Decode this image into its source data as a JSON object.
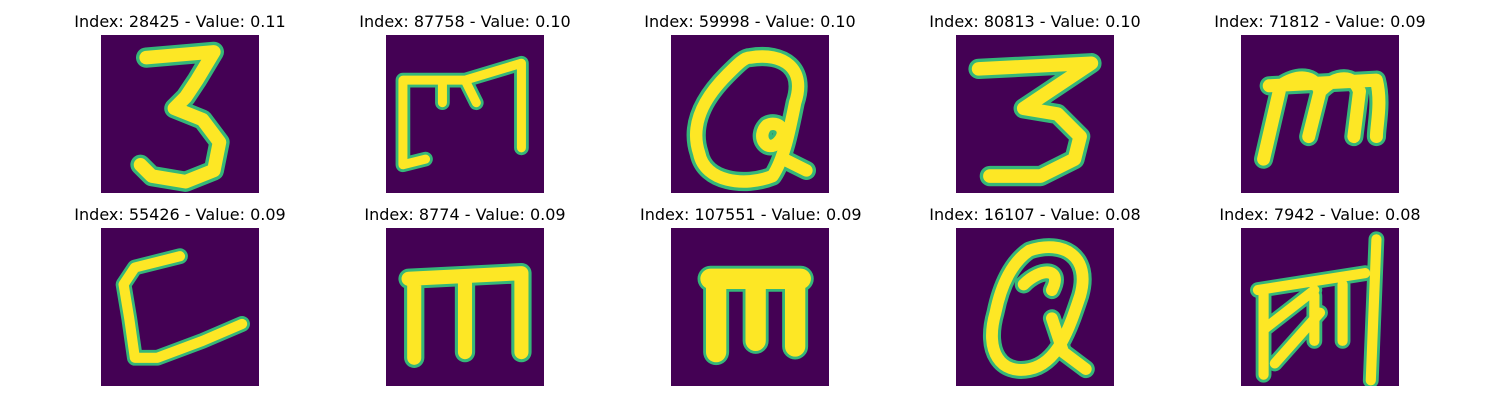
{
  "panels": [
    {
      "title": "Index: 28425 - Value: 0.11",
      "glyph": "three-a",
      "colormap": "viridis"
    },
    {
      "title": "Index: 87758 - Value: 0.10",
      "glyph": "m-box",
      "colormap": "viridis"
    },
    {
      "title": "Index: 59998 - Value: 0.10",
      "glyph": "q-round",
      "colormap": "viridis"
    },
    {
      "title": "Index: 80813 - Value: 0.10",
      "glyph": "three-b",
      "colormap": "viridis"
    },
    {
      "title": "Index: 71812 - Value: 0.09",
      "glyph": "m-slant",
      "colormap": "viridis"
    },
    {
      "title": "Index: 55426 - Value: 0.09",
      "glyph": "l-curve",
      "colormap": "viridis"
    },
    {
      "title": "Index: 8774 - Value: 0.09",
      "glyph": "m-thick",
      "colormap": "viridis"
    },
    {
      "title": "Index: 107551 - Value: 0.09",
      "glyph": "m-bold",
      "colormap": "viridis"
    },
    {
      "title": "Index: 16107 - Value: 0.08",
      "glyph": "q-tall",
      "colormap": "viridis"
    },
    {
      "title": "Index: 7942 - Value: 0.08",
      "glyph": "scribble",
      "colormap": "viridis"
    }
  ],
  "colors": {
    "background": "#440154",
    "stroke_outer": "#35b779",
    "stroke_inner": "#fde725"
  }
}
